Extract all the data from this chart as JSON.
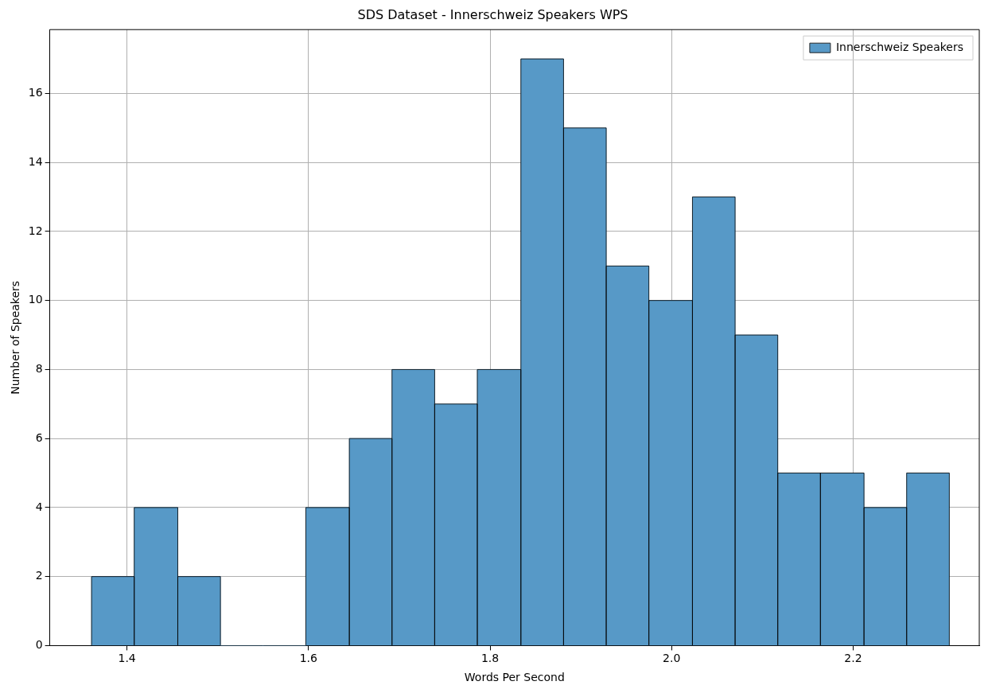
{
  "chart_data": {
    "type": "histogram",
    "title": "SDS Dataset - Innerschweiz Speakers WPS",
    "xlabel": "Words Per Second",
    "ylabel": "Number of Speakers",
    "bins": [
      1.361,
      1.408,
      1.456,
      1.503,
      1.55,
      1.597,
      1.645,
      1.692,
      1.739,
      1.786,
      1.834,
      1.881,
      1.928,
      1.975,
      2.023,
      2.07,
      2.117,
      2.164,
      2.212,
      2.259,
      2.306
    ],
    "series": [
      {
        "name": "Innerschweiz Speakers",
        "color": "#5799c7",
        "values": [
          2,
          4,
          2,
          0,
          0,
          4,
          6,
          8,
          7,
          8,
          17,
          15,
          11,
          10,
          13,
          9,
          5,
          5,
          4,
          5
        ]
      }
    ],
    "xlim": [
      1.315,
      2.339
    ],
    "xticks": [
      {
        "value": 1.4,
        "label": "1.4"
      },
      {
        "value": 1.6,
        "label": "1.6"
      },
      {
        "value": 1.8,
        "label": "1.8"
      },
      {
        "value": 2.0,
        "label": "2.0"
      },
      {
        "value": 2.2,
        "label": "2.2"
      }
    ],
    "ylim": [
      0,
      17.85
    ],
    "yticks": [
      0,
      2,
      4,
      6,
      8,
      10,
      12,
      14,
      16
    ],
    "grid": true,
    "legend": "top right"
  }
}
